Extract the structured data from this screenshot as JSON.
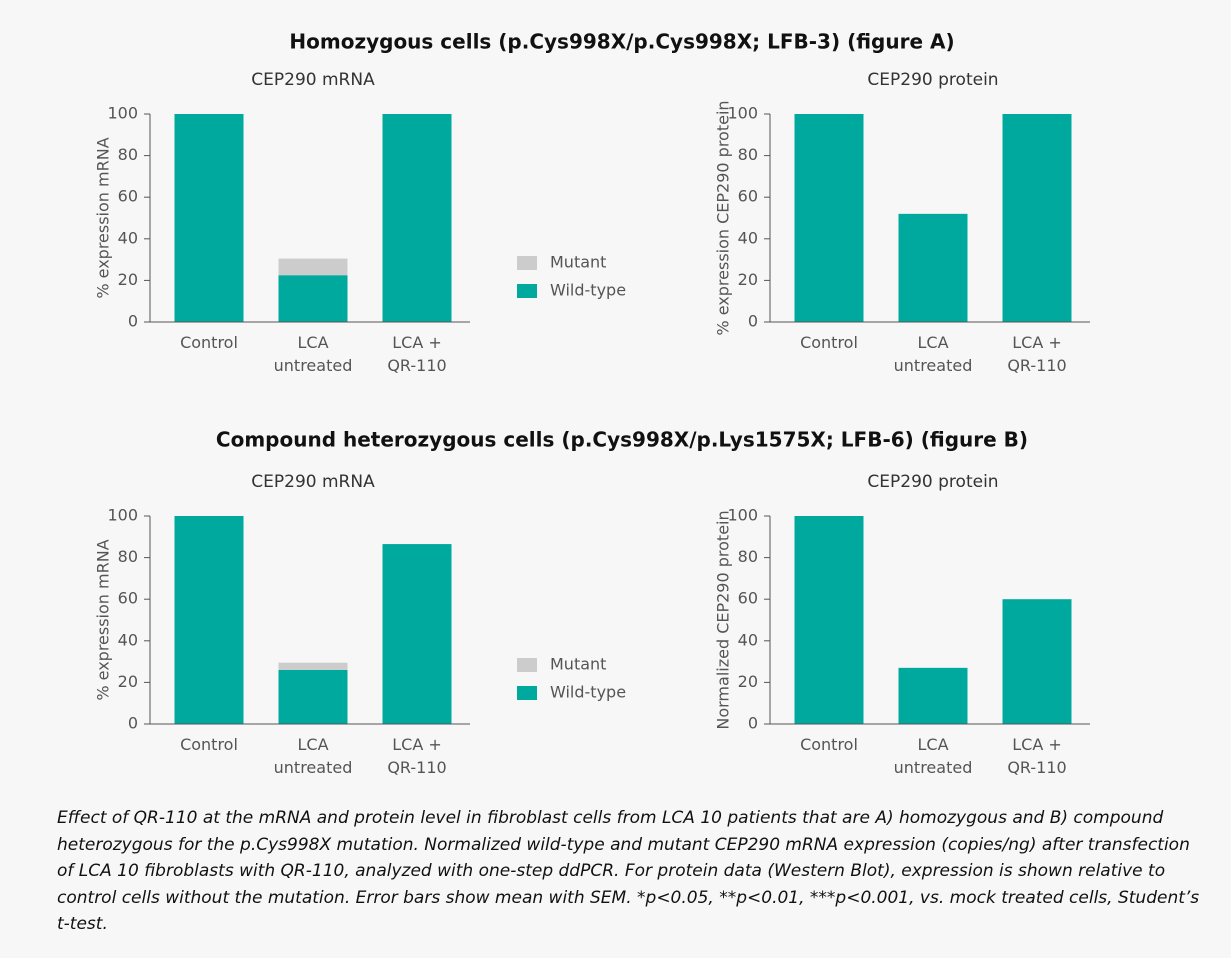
{
  "headings": [
    "Homozygous cells (p.Cys998X/p.Cys998X; LFB-3) (figure A)",
    "Compound heterozygous cells (p.Cys998X/p.Lys1575X; LFB-6) (figure B)"
  ],
  "caption": "Effect of QR-110 at the mRNA and protein level in fibroblast cells from LCA 10 patients that are A) homozygous and B) compound heterozygous for the p.Cys998X mutation. Normalized wild-type and mutant CEP290 mRNA expression (copies/ng) after transfection of LCA 10 fibroblasts with QR-110, analyzed with one-step ddPCR. For protein data (Western Blot), expression is shown relative to control cells without the mutation. Error bars show mean with SEM. *p<0.05, **p<0.01, ***p<0.001, vs. mock treated cells, Student’s t-test.",
  "chart_data": [
    {
      "type": "bar",
      "stacked": true,
      "title": "CEP290 mRNA",
      "y_label": "% expression mRNA",
      "categories": [
        "Control",
        "LCA\nuntreated",
        "LCA +\nQR-110"
      ],
      "series": [
        {
          "name": "Wild-type",
          "color": "#00a99d",
          "values": [
            100,
            22.5,
            100
          ]
        },
        {
          "name": "Mutant",
          "color": "#cccccc",
          "values": [
            0,
            8,
            0
          ]
        }
      ],
      "ylim": [
        0,
        100
      ],
      "yticks": [
        0,
        20,
        40,
        60,
        80,
        100
      ]
    },
    {
      "type": "bar",
      "title": "CEP290 protein",
      "y_label": "% expression CEP290 protein",
      "categories": [
        "Control",
        "LCA\nuntreated",
        "LCA +\nQR-110"
      ],
      "values": [
        100,
        52,
        100
      ],
      "color": "#00a99d",
      "ylim": [
        0,
        100
      ],
      "yticks": [
        0,
        20,
        40,
        60,
        80,
        100
      ]
    },
    {
      "type": "bar",
      "stacked": true,
      "title": "CEP290 mRNA",
      "y_label": "% expression mRNA",
      "categories": [
        "Control",
        "LCA\nuntreated",
        "LCA +\nQR-110"
      ],
      "series": [
        {
          "name": "Wild-type",
          "color": "#00a99d",
          "values": [
            100,
            26,
            86.5
          ]
        },
        {
          "name": "Mutant",
          "color": "#cccccc",
          "values": [
            0,
            3.5,
            0
          ]
        }
      ],
      "ylim": [
        0,
        100
      ],
      "yticks": [
        0,
        20,
        40,
        60,
        80,
        100
      ]
    },
    {
      "type": "bar",
      "title": "CEP290 protein",
      "y_label": "Normalized CEP290 protein",
      "categories": [
        "Control",
        "LCA\nuntreated",
        "LCA +\nQR-110"
      ],
      "values": [
        100,
        27,
        60
      ],
      "color": "#00a99d",
      "ylim": [
        0,
        100
      ],
      "yticks": [
        0,
        20,
        40,
        60,
        80,
        100
      ]
    }
  ]
}
